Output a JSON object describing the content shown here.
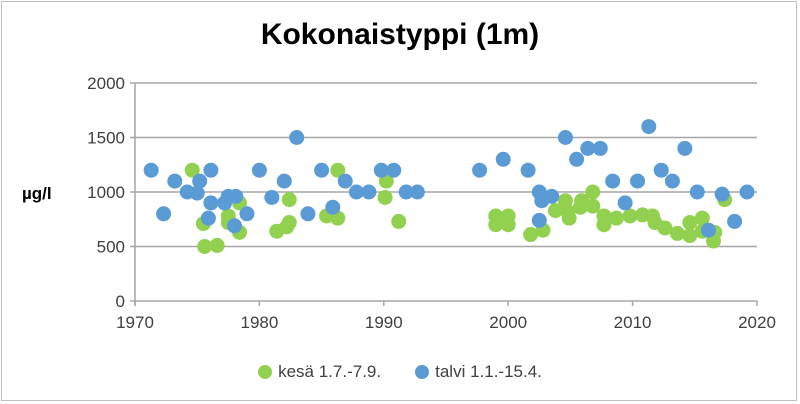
{
  "chart_data": {
    "type": "scatter",
    "title": "Kokonaistyppi (1m)",
    "xlabel": "",
    "ylabel": "µg/l",
    "xlim": [
      1970,
      2020
    ],
    "ylim": [
      0,
      2000
    ],
    "xticks": [
      "1970",
      "1980",
      "1990",
      "2000",
      "2010",
      "2020"
    ],
    "yticks": [
      "0",
      "500",
      "1000",
      "1500",
      "2000"
    ],
    "grid": "horizontal",
    "legend": "bottom",
    "series": [
      {
        "name": "kesä 1.7.-7.9.",
        "color": "#92d050",
        "points": [
          [
            1974.6,
            1200
          ],
          [
            1975.5,
            710
          ],
          [
            1975.6,
            500
          ],
          [
            1976.6,
            510
          ],
          [
            1977.5,
            780
          ],
          [
            1977.5,
            720
          ],
          [
            1978.4,
            900
          ],
          [
            1978.4,
            630
          ],
          [
            1981.4,
            640
          ],
          [
            1982.4,
            930
          ],
          [
            1982.4,
            720
          ],
          [
            1982.2,
            680
          ],
          [
            1985.4,
            780
          ],
          [
            1986.3,
            760
          ],
          [
            1986.3,
            1200
          ],
          [
            1990.1,
            950
          ],
          [
            1990.2,
            1100
          ],
          [
            1991.2,
            730
          ],
          [
            1999.0,
            780
          ],
          [
            2000.0,
            780
          ],
          [
            1999.0,
            700
          ],
          [
            2000.0,
            700
          ],
          [
            2001.8,
            610
          ],
          [
            2002.8,
            650
          ],
          [
            2003.8,
            830
          ],
          [
            2004.6,
            920
          ],
          [
            2004.8,
            820
          ],
          [
            2004.9,
            760
          ],
          [
            2005.8,
            860
          ],
          [
            2005.9,
            920
          ],
          [
            2006.8,
            870
          ],
          [
            2006.8,
            1000
          ],
          [
            2007.7,
            780
          ],
          [
            2007.7,
            700
          ],
          [
            2008.7,
            760
          ],
          [
            2009.8,
            780
          ],
          [
            2010.8,
            790
          ],
          [
            2011.6,
            780
          ],
          [
            2011.8,
            720
          ],
          [
            2012.6,
            670
          ],
          [
            2013.6,
            620
          ],
          [
            2014.6,
            600
          ],
          [
            2014.6,
            720
          ],
          [
            2015.6,
            760
          ],
          [
            2015.6,
            640
          ],
          [
            2016.6,
            630
          ],
          [
            2016.5,
            550
          ],
          [
            2017.4,
            930
          ]
        ]
      },
      {
        "name": "talvi 1.1.-15.4.",
        "color": "#5b9bd5",
        "points": [
          [
            1971.3,
            1200
          ],
          [
            1972.3,
            800
          ],
          [
            1973.2,
            1100
          ],
          [
            1974.2,
            1000
          ],
          [
            1975.2,
            1100
          ],
          [
            1975.0,
            990
          ],
          [
            1975.9,
            760
          ],
          [
            1976.1,
            1200
          ],
          [
            1976.1,
            900
          ],
          [
            1977.2,
            900
          ],
          [
            1977.5,
            960
          ],
          [
            1978.0,
            690
          ],
          [
            1978.1,
            960
          ],
          [
            1979.0,
            800
          ],
          [
            1980.0,
            1200
          ],
          [
            1981.0,
            950
          ],
          [
            1982.0,
            1100
          ],
          [
            1983.0,
            1500
          ],
          [
            1983.9,
            800
          ],
          [
            1985.0,
            1200
          ],
          [
            1985.9,
            860
          ],
          [
            1986.9,
            1100
          ],
          [
            1987.8,
            1000
          ],
          [
            1988.8,
            1000
          ],
          [
            1989.8,
            1200
          ],
          [
            1990.8,
            1200
          ],
          [
            1991.8,
            1000
          ],
          [
            1992.7,
            1000
          ],
          [
            1997.7,
            1200
          ],
          [
            1999.6,
            1300
          ],
          [
            2001.6,
            1200
          ],
          [
            2002.5,
            1000
          ],
          [
            2002.5,
            740
          ],
          [
            2002.7,
            920
          ],
          [
            2003.5,
            960
          ],
          [
            2004.6,
            1500
          ],
          [
            2005.5,
            1300
          ],
          [
            2006.4,
            1400
          ],
          [
            2007.4,
            1400
          ],
          [
            2008.4,
            1100
          ],
          [
            2009.4,
            900
          ],
          [
            2010.4,
            1100
          ],
          [
            2011.3,
            1600
          ],
          [
            2012.3,
            1200
          ],
          [
            2013.2,
            1100
          ],
          [
            2014.2,
            1400
          ],
          [
            2015.2,
            1000
          ],
          [
            2016.1,
            650
          ],
          [
            2017.2,
            980
          ],
          [
            2018.2,
            730
          ],
          [
            2019.2,
            1000
          ]
        ]
      }
    ]
  }
}
